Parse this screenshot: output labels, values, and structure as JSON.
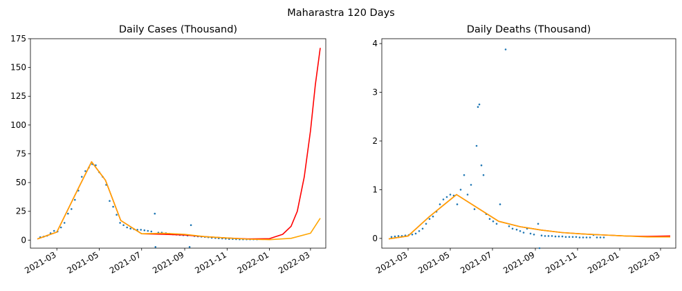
{
  "figure": {
    "suptitle": "Maharastra 120 Days"
  },
  "colors": {
    "scatter": "#1f77b4",
    "fit_red": "#ff0000",
    "fit_orange": "#ffa500"
  },
  "chart_data": [
    {
      "type": "scatter",
      "title": "Daily Cases (Thousand)",
      "xlabel": "",
      "ylabel": "",
      "x_axis_type": "date",
      "xlim": [
        "2021-01-22",
        "2022-03-23"
      ],
      "ylim": [
        -7,
        175
      ],
      "x_ticks": [
        "2021-03-01",
        "2021-05-01",
        "2021-07-01",
        "2021-09-01",
        "2021-11-01",
        "2022-01-01",
        "2022-03-01"
      ],
      "x_tick_labels": [
        "2021-03",
        "2021-05",
        "2021-07",
        "2021-09",
        "2021-11",
        "2022-01",
        "2022-03"
      ],
      "y_ticks": [
        0,
        25,
        50,
        75,
        100,
        125,
        150,
        175
      ],
      "grid": false,
      "legend": "none",
      "series": [
        {
          "kind": "scatter",
          "color": "#1f77b4",
          "points": [
            [
              "2021-02-05",
              2.5
            ],
            [
              "2021-02-10",
              3.0
            ],
            [
              "2021-02-15",
              3.8
            ],
            [
              "2021-02-20",
              6.0
            ],
            [
              "2021-02-25",
              8.0
            ],
            [
              "2021-03-02",
              7.5
            ],
            [
              "2021-03-07",
              11.0
            ],
            [
              "2021-03-12",
              15.0
            ],
            [
              "2021-03-17",
              23.0
            ],
            [
              "2021-03-22",
              27.0
            ],
            [
              "2021-03-27",
              35.0
            ],
            [
              "2021-04-01",
              43.0
            ],
            [
              "2021-04-06",
              55.0
            ],
            [
              "2021-04-11",
              60.0
            ],
            [
              "2021-04-16",
              63.0
            ],
            [
              "2021-04-21",
              66.0
            ],
            [
              "2021-04-26",
              65.0
            ],
            [
              "2021-05-01",
              59.0
            ],
            [
              "2021-05-06",
              55.0
            ],
            [
              "2021-05-11",
              48.0
            ],
            [
              "2021-05-16",
              34.0
            ],
            [
              "2021-05-21",
              29.0
            ],
            [
              "2021-05-26",
              22.0
            ],
            [
              "2021-05-31",
              15.0
            ],
            [
              "2021-06-05",
              13.0
            ],
            [
              "2021-06-10",
              11.0
            ],
            [
              "2021-06-15",
              10.0
            ],
            [
              "2021-06-20",
              9.5
            ],
            [
              "2021-06-25",
              9.0
            ],
            [
              "2021-06-30",
              9.0
            ],
            [
              "2021-07-05",
              8.5
            ],
            [
              "2021-07-10",
              8.0
            ],
            [
              "2021-07-15",
              7.5
            ],
            [
              "2021-07-20",
              23.0
            ],
            [
              "2021-07-21",
              -6.0
            ],
            [
              "2021-07-25",
              6.5
            ],
            [
              "2021-07-30",
              6.5
            ],
            [
              "2021-08-05",
              6.0
            ],
            [
              "2021-08-10",
              5.5
            ],
            [
              "2021-08-15",
              5.0
            ],
            [
              "2021-08-20",
              4.8
            ],
            [
              "2021-08-25",
              4.5
            ],
            [
              "2021-08-30",
              4.3
            ],
            [
              "2021-09-05",
              4.0
            ],
            [
              "2021-09-08",
              -6.0
            ],
            [
              "2021-09-10",
              13.0
            ],
            [
              "2021-09-15",
              3.5
            ],
            [
              "2021-09-20",
              3.2
            ],
            [
              "2021-09-25",
              3.0
            ],
            [
              "2021-09-30",
              2.8
            ],
            [
              "2021-10-05",
              2.5
            ],
            [
              "2021-10-10",
              2.0
            ],
            [
              "2021-10-15",
              1.8
            ],
            [
              "2021-10-20",
              1.6
            ],
            [
              "2021-10-25",
              1.4
            ],
            [
              "2021-10-30",
              1.2
            ],
            [
              "2021-11-04",
              1.0
            ],
            [
              "2021-11-09",
              0.9
            ],
            [
              "2021-11-14",
              0.8
            ],
            [
              "2021-11-19",
              0.7
            ],
            [
              "2021-11-24",
              0.7
            ],
            [
              "2021-11-29",
              0.7
            ],
            [
              "2021-12-04",
              0.7
            ],
            [
              "2021-12-09",
              0.7
            ],
            [
              "2021-12-14",
              0.6
            ]
          ]
        },
        {
          "kind": "line",
          "color": "#ff0000",
          "points": [
            [
              "2021-02-01",
              1.0
            ],
            [
              "2021-03-01",
              7.0
            ],
            [
              "2021-04-01",
              45.0
            ],
            [
              "2021-04-20",
              68.0
            ],
            [
              "2021-05-10",
              52.0
            ],
            [
              "2021-06-01",
              17.0
            ],
            [
              "2021-07-01",
              5.5
            ],
            [
              "2021-08-01",
              5.0
            ],
            [
              "2021-09-01",
              4.5
            ],
            [
              "2021-10-01",
              3.0
            ],
            [
              "2021-11-01",
              1.8
            ],
            [
              "2021-12-01",
              1.0
            ],
            [
              "2022-01-01",
              1.2
            ],
            [
              "2022-01-20",
              5.0
            ],
            [
              "2022-02-01",
              12.0
            ],
            [
              "2022-02-10",
              25.0
            ],
            [
              "2022-02-20",
              55.0
            ],
            [
              "2022-03-01",
              95.0
            ],
            [
              "2022-03-08",
              135.0
            ],
            [
              "2022-03-15",
              167.0
            ]
          ]
        },
        {
          "kind": "line",
          "color": "#ffa500",
          "points": [
            [
              "2021-02-01",
              1.0
            ],
            [
              "2021-03-01",
              7.0
            ],
            [
              "2021-04-01",
              45.0
            ],
            [
              "2021-04-20",
              68.0
            ],
            [
              "2021-05-10",
              52.0
            ],
            [
              "2021-06-01",
              17.0
            ],
            [
              "2021-07-01",
              5.5
            ],
            [
              "2021-08-01",
              6.0
            ],
            [
              "2021-09-01",
              5.0
            ],
            [
              "2021-10-01",
              3.0
            ],
            [
              "2021-11-01",
              1.8
            ],
            [
              "2021-12-01",
              0.8
            ],
            [
              "2022-01-01",
              0.4
            ],
            [
              "2022-02-01",
              1.5
            ],
            [
              "2022-03-01",
              6.0
            ],
            [
              "2022-03-15",
              19.0
            ]
          ]
        }
      ]
    },
    {
      "type": "scatter",
      "title": "Daily Deaths (Thousand)",
      "xlabel": "",
      "ylabel": "",
      "x_axis_type": "date",
      "xlim": [
        "2021-01-22",
        "2022-03-23"
      ],
      "ylim": [
        -0.2,
        4.1
      ],
      "x_ticks": [
        "2021-03-01",
        "2021-05-01",
        "2021-07-01",
        "2021-09-01",
        "2021-11-01",
        "2022-01-01",
        "2022-03-01"
      ],
      "x_tick_labels": [
        "2021-03",
        "2021-05",
        "2021-07",
        "2021-09",
        "2021-11",
        "2022-01",
        "2022-03"
      ],
      "y_ticks": [
        0,
        1,
        2,
        3,
        4
      ],
      "grid": false,
      "legend": "none",
      "series": [
        {
          "kind": "scatter",
          "color": "#1f77b4",
          "points": [
            [
              "2021-02-05",
              0.03
            ],
            [
              "2021-02-10",
              0.04
            ],
            [
              "2021-02-15",
              0.05
            ],
            [
              "2021-02-20",
              0.05
            ],
            [
              "2021-02-25",
              0.06
            ],
            [
              "2021-03-02",
              0.07
            ],
            [
              "2021-03-07",
              0.08
            ],
            [
              "2021-03-12",
              0.1
            ],
            [
              "2021-03-17",
              0.15
            ],
            [
              "2021-03-22",
              0.2
            ],
            [
              "2021-03-27",
              0.3
            ],
            [
              "2021-04-01",
              0.4
            ],
            [
              "2021-04-06",
              0.45
            ],
            [
              "2021-04-11",
              0.55
            ],
            [
              "2021-04-16",
              0.7
            ],
            [
              "2021-04-21",
              0.8
            ],
            [
              "2021-04-26",
              0.85
            ],
            [
              "2021-05-01",
              0.9
            ],
            [
              "2021-05-06",
              0.88
            ],
            [
              "2021-05-11",
              0.7
            ],
            [
              "2021-05-16",
              1.0
            ],
            [
              "2021-05-21",
              1.3
            ],
            [
              "2021-05-26",
              0.9
            ],
            [
              "2021-05-31",
              1.1
            ],
            [
              "2021-06-05",
              0.6
            ],
            [
              "2021-06-08",
              1.9
            ],
            [
              "2021-06-10",
              2.7
            ],
            [
              "2021-06-12",
              2.75
            ],
            [
              "2021-06-15",
              1.5
            ],
            [
              "2021-06-18",
              1.3
            ],
            [
              "2021-06-22",
              0.5
            ],
            [
              "2021-06-27",
              0.4
            ],
            [
              "2021-07-02",
              0.35
            ],
            [
              "2021-07-07",
              0.3
            ],
            [
              "2021-07-12",
              0.7
            ],
            [
              "2021-07-20",
              3.88
            ],
            [
              "2021-07-25",
              0.25
            ],
            [
              "2021-07-30",
              0.2
            ],
            [
              "2021-08-05",
              0.18
            ],
            [
              "2021-08-10",
              0.15
            ],
            [
              "2021-08-15",
              0.12
            ],
            [
              "2021-08-20",
              0.2
            ],
            [
              "2021-08-25",
              0.1
            ],
            [
              "2021-08-30",
              0.08
            ],
            [
              "2021-09-05",
              0.3
            ],
            [
              "2021-09-07",
              -0.2
            ],
            [
              "2021-09-10",
              0.06
            ],
            [
              "2021-09-15",
              0.05
            ],
            [
              "2021-09-20",
              0.05
            ],
            [
              "2021-09-25",
              0.05
            ],
            [
              "2021-09-30",
              0.04
            ],
            [
              "2021-10-05",
              0.04
            ],
            [
              "2021-10-10",
              0.04
            ],
            [
              "2021-10-15",
              0.03
            ],
            [
              "2021-10-20",
              0.03
            ],
            [
              "2021-10-25",
              0.03
            ],
            [
              "2021-10-30",
              0.03
            ],
            [
              "2021-11-04",
              0.02
            ],
            [
              "2021-11-09",
              0.02
            ],
            [
              "2021-11-14",
              0.02
            ],
            [
              "2021-11-19",
              0.02
            ],
            [
              "2021-11-24",
              0.07
            ],
            [
              "2021-11-29",
              0.02
            ],
            [
              "2021-12-04",
              0.02
            ],
            [
              "2021-12-09",
              0.02
            ]
          ]
        },
        {
          "kind": "line",
          "color": "#ff0000",
          "points": [
            [
              "2021-02-01",
              -0.01
            ],
            [
              "2021-03-01",
              0.05
            ],
            [
              "2021-04-01",
              0.45
            ],
            [
              "2021-05-10",
              0.9
            ],
            [
              "2021-06-10",
              0.62
            ],
            [
              "2021-07-10",
              0.35
            ],
            [
              "2021-08-10",
              0.24
            ],
            [
              "2021-09-10",
              0.17
            ],
            [
              "2021-10-10",
              0.12
            ],
            [
              "2021-11-10",
              0.09
            ],
            [
              "2021-12-10",
              0.07
            ],
            [
              "2022-01-10",
              0.05
            ],
            [
              "2022-02-10",
              0.04
            ],
            [
              "2022-03-15",
              0.05
            ]
          ]
        },
        {
          "kind": "line",
          "color": "#ffa500",
          "points": [
            [
              "2021-02-01",
              -0.01
            ],
            [
              "2021-03-01",
              0.05
            ],
            [
              "2021-04-01",
              0.45
            ],
            [
              "2021-05-10",
              0.9
            ],
            [
              "2021-06-10",
              0.62
            ],
            [
              "2021-07-10",
              0.35
            ],
            [
              "2021-08-10",
              0.24
            ],
            [
              "2021-09-10",
              0.17
            ],
            [
              "2021-10-10",
              0.12
            ],
            [
              "2021-11-10",
              0.09
            ],
            [
              "2021-12-10",
              0.07
            ],
            [
              "2022-01-10",
              0.05
            ],
            [
              "2022-02-10",
              0.03
            ],
            [
              "2022-03-15",
              0.03
            ]
          ]
        }
      ]
    }
  ]
}
